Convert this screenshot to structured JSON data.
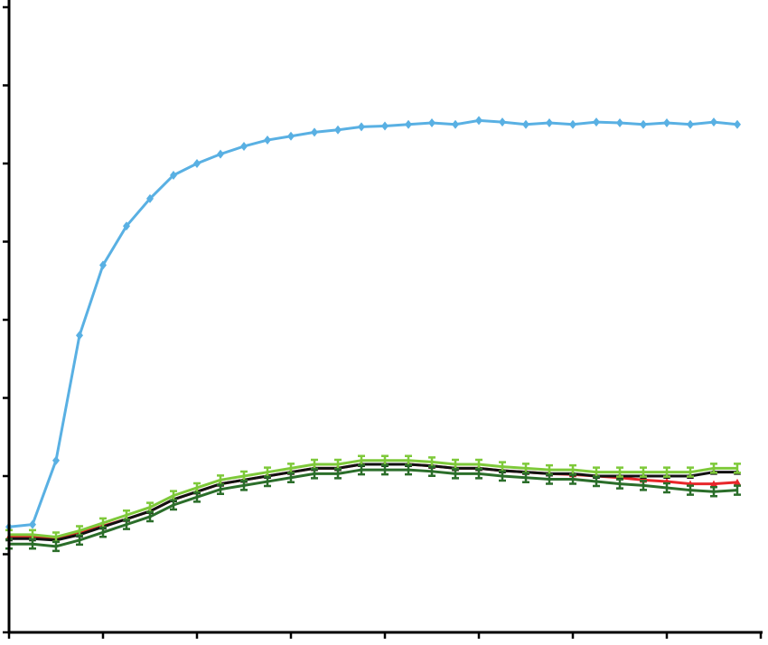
{
  "chart_data": {
    "type": "scatter",
    "xlim": [
      0,
      8
    ],
    "xticks": [
      0,
      1,
      2,
      3,
      4,
      5,
      6,
      7,
      8
    ],
    "ylim": [
      0,
      8
    ],
    "yticks": [
      0,
      1,
      2,
      3,
      4,
      5,
      6,
      7,
      8
    ],
    "grid": false,
    "x": [
      0,
      0.25,
      0.5,
      0.75,
      1,
      1.25,
      1.5,
      1.75,
      2,
      2.25,
      2.5,
      2.75,
      3,
      3.25,
      3.5,
      3.75,
      4,
      4.25,
      4.5,
      4.75,
      5,
      5.25,
      5.5,
      5.75,
      6,
      6.25,
      6.5,
      6.75,
      7,
      7.25,
      7.5,
      7.75
    ],
    "series": [
      {
        "color": "#59b0e3",
        "marker": "diamond",
        "values": [
          1.35,
          1.38,
          2.2,
          3.8,
          4.7,
          5.2,
          5.55,
          5.85,
          6.0,
          6.12,
          6.22,
          6.3,
          6.35,
          6.4,
          6.43,
          6.47,
          6.48,
          6.5,
          6.52,
          6.5,
          6.55,
          6.53,
          6.5,
          6.52,
          6.5,
          6.53,
          6.52,
          6.5,
          6.52,
          6.5,
          6.53,
          6.5
        ]
      },
      {
        "color": "#e8262a",
        "marker": "triangle",
        "values": [
          1.22,
          1.22,
          1.2,
          1.27,
          1.36,
          1.45,
          1.55,
          1.7,
          1.8,
          1.9,
          1.95,
          2.0,
          2.05,
          2.1,
          2.1,
          2.15,
          2.15,
          2.15,
          2.13,
          2.1,
          2.1,
          2.07,
          2.05,
          2.03,
          2.02,
          2.0,
          1.98,
          1.95,
          1.93,
          1.9,
          1.9,
          1.92
        ]
      },
      {
        "color": "#111111",
        "marker": "triangle",
        "values": [
          1.2,
          1.2,
          1.18,
          1.25,
          1.35,
          1.45,
          1.55,
          1.7,
          1.8,
          1.9,
          1.95,
          2.0,
          2.05,
          2.1,
          2.1,
          2.15,
          2.15,
          2.15,
          2.13,
          2.1,
          2.1,
          2.07,
          2.05,
          2.03,
          2.03,
          2.0,
          2.0,
          2.0,
          2.0,
          2.0,
          2.05,
          2.05
        ]
      },
      {
        "color": "#7ec93a",
        "marker": "bar",
        "values": [
          1.25,
          1.25,
          1.22,
          1.3,
          1.4,
          1.5,
          1.6,
          1.75,
          1.85,
          1.95,
          2.0,
          2.05,
          2.1,
          2.15,
          2.15,
          2.2,
          2.2,
          2.2,
          2.18,
          2.15,
          2.15,
          2.12,
          2.1,
          2.08,
          2.08,
          2.05,
          2.05,
          2.05,
          2.05,
          2.05,
          2.1,
          2.1
        ]
      },
      {
        "color": "#2b6e2a",
        "marker": "bar",
        "values": [
          1.13,
          1.13,
          1.1,
          1.18,
          1.28,
          1.38,
          1.48,
          1.63,
          1.73,
          1.83,
          1.88,
          1.93,
          1.98,
          2.03,
          2.03,
          2.08,
          2.08,
          2.08,
          2.06,
          2.03,
          2.03,
          2.0,
          1.98,
          1.96,
          1.96,
          1.93,
          1.9,
          1.88,
          1.85,
          1.82,
          1.8,
          1.82
        ]
      }
    ]
  }
}
